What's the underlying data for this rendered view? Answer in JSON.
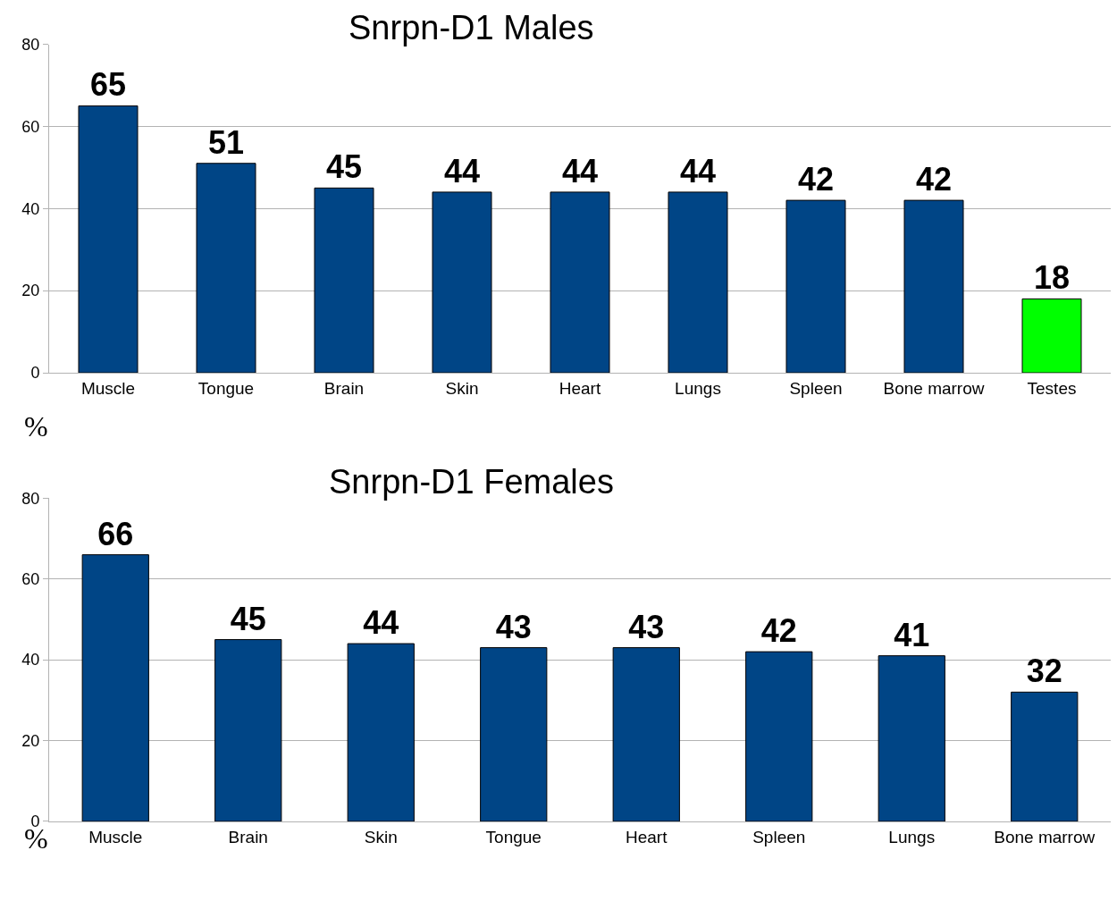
{
  "chart_data": [
    {
      "type": "bar",
      "title": "Snrpn-D1 Males",
      "ylabel": "%",
      "categories": [
        "Muscle",
        "Tongue",
        "Brain",
        "Skin",
        "Heart",
        "Lungs",
        "Spleen",
        "Bone marrow",
        "Testes"
      ],
      "values": [
        65,
        51,
        45,
        44,
        44,
        44,
        42,
        42,
        18
      ],
      "colors": [
        "#004586",
        "#004586",
        "#004586",
        "#004586",
        "#004586",
        "#004586",
        "#004586",
        "#004586",
        "#00ff00"
      ],
      "ylim": [
        0,
        80
      ],
      "yticks": [
        0,
        20,
        40,
        60,
        80
      ],
      "grid": "y",
      "data_labels": true
    },
    {
      "type": "bar",
      "title": "Snrpn-D1 Females",
      "ylabel": "%",
      "categories": [
        "Muscle",
        "Brain",
        "Skin",
        "Tongue",
        "Heart",
        "Spleen",
        "Lungs",
        "Bone marrow"
      ],
      "values": [
        66,
        45,
        44,
        43,
        43,
        42,
        41,
        32
      ],
      "colors": [
        "#004586",
        "#004586",
        "#004586",
        "#004586",
        "#004586",
        "#004586",
        "#004586",
        "#004586"
      ],
      "ylim": [
        0,
        80
      ],
      "yticks": [
        0,
        20,
        40,
        60,
        80
      ],
      "grid": "y",
      "data_labels": true
    }
  ]
}
